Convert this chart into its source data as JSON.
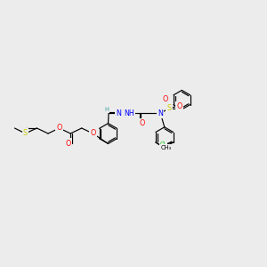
{
  "bg_color": "#ececec",
  "bond_color": "#000000",
  "atom_colors": {
    "C": "#000000",
    "H": "#40a0a0",
    "N": "#0000ff",
    "O": "#ff0000",
    "S": "#cccc00",
    "Cl": "#00cc00"
  },
  "lw": 0.85,
  "fs": 5.8,
  "fs_sub": 4.8
}
